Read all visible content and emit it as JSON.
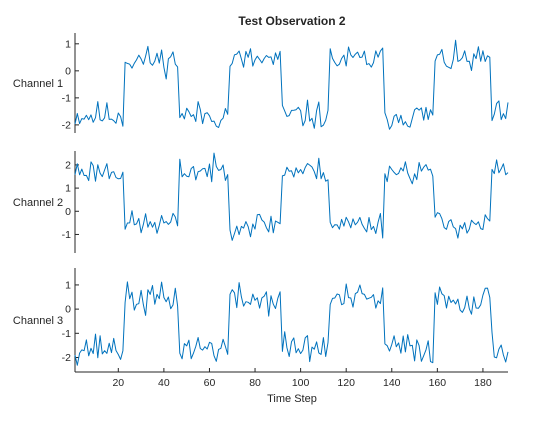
{
  "chart_data": {
    "type": "line",
    "title": "Test Observation 2",
    "xlabel": "Time Step",
    "xlim": [
      1,
      191
    ],
    "xticks": [
      20,
      40,
      60,
      80,
      100,
      120,
      140,
      160,
      180
    ],
    "series_color": "#0072BD",
    "panels": [
      {
        "name": "Channel 1",
        "ylim": [
          -2.3,
          1.4
        ],
        "yticks": [
          -2,
          -1,
          0,
          1
        ],
        "low": -1.65,
        "high": 0.4,
        "noise": 0.32,
        "seed": 11,
        "segments": [
          [
            1,
            22,
            "low"
          ],
          [
            23,
            46,
            "high"
          ],
          [
            47,
            68,
            "low"
          ],
          [
            69,
            91,
            "high"
          ],
          [
            92,
            112,
            "low"
          ],
          [
            113,
            136,
            "high"
          ],
          [
            137,
            158,
            "low"
          ],
          [
            159,
            183,
            "high"
          ],
          [
            184,
            191,
            "low"
          ]
        ]
      },
      {
        "name": "Channel 2",
        "ylim": [
          -1.8,
          2.6
        ],
        "yticks": [
          -1,
          0,
          1,
          2
        ],
        "low": -0.55,
        "high": 1.75,
        "noise": 0.34,
        "seed": 23,
        "segments": [
          [
            1,
            22,
            "high"
          ],
          [
            23,
            46,
            "low"
          ],
          [
            47,
            68,
            "high"
          ],
          [
            69,
            91,
            "low"
          ],
          [
            92,
            112,
            "high"
          ],
          [
            113,
            136,
            "low"
          ],
          [
            137,
            158,
            "high"
          ],
          [
            159,
            183,
            "low"
          ],
          [
            184,
            191,
            "high"
          ]
        ]
      },
      {
        "name": "Channel 3",
        "ylim": [
          -2.6,
          1.7
        ],
        "yticks": [
          -2,
          -1,
          0,
          1
        ],
        "low": -1.6,
        "high": 0.4,
        "noise": 0.4,
        "seed": 37,
        "segments": [
          [
            1,
            22,
            "low"
          ],
          [
            23,
            46,
            "high"
          ],
          [
            47,
            68,
            "low"
          ],
          [
            69,
            91,
            "high"
          ],
          [
            92,
            112,
            "low"
          ],
          [
            113,
            136,
            "high"
          ],
          [
            137,
            158,
            "low"
          ],
          [
            159,
            183,
            "high"
          ],
          [
            184,
            191,
            "low"
          ]
        ]
      }
    ]
  }
}
